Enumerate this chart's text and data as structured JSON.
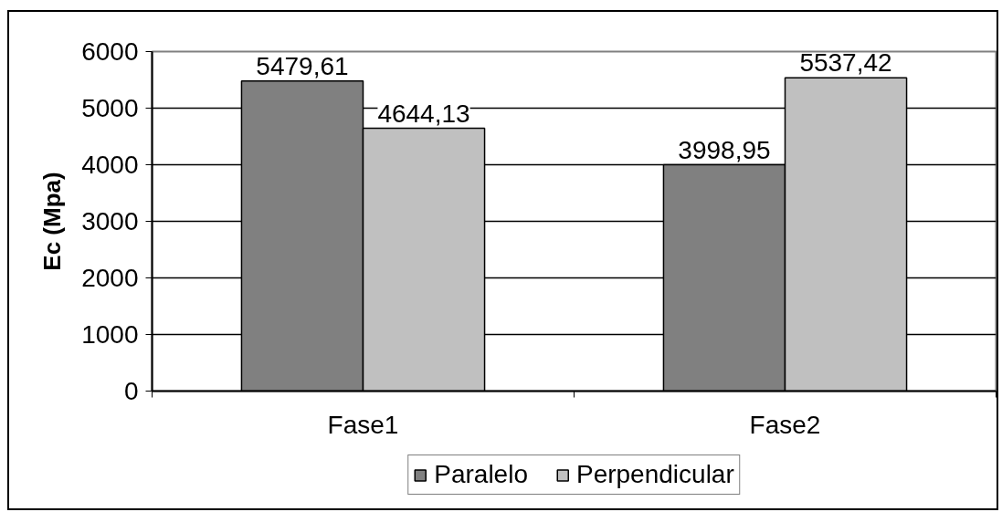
{
  "chart_data": {
    "type": "bar",
    "ylabel": "Ec (Mpa)",
    "categories": [
      "Fase1",
      "Fase2"
    ],
    "series": [
      {
        "name": "Paralelo",
        "color": "#808080",
        "values": [
          5479.61,
          3998.95
        ],
        "value_labels": [
          "5479,61",
          "3998,95"
        ]
      },
      {
        "name": "Perpendicular",
        "color": "#c0c0c0",
        "values": [
          4644.13,
          5537.42
        ],
        "value_labels": [
          "4644,13",
          "5537,42"
        ]
      }
    ],
    "ylim": [
      0,
      6000
    ],
    "yticks": [
      0,
      1000,
      2000,
      3000,
      4000,
      5000,
      6000
    ],
    "grid": "y",
    "legend": "bottom"
  }
}
